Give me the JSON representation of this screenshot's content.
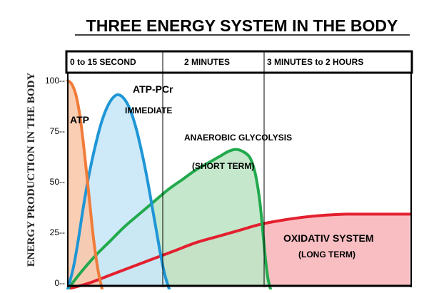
{
  "chart_data": {
    "type": "area",
    "title": "THREE ENERGY SYSTEM IN THE BODY",
    "ylabel": "ENERGY PRODUCTION IN THE BODY",
    "ylim": [
      0,
      105
    ],
    "yticks": [
      {
        "value": 0,
        "label": "0--"
      },
      {
        "value": 25,
        "label": "25--"
      },
      {
        "value": 50,
        "label": "50--"
      },
      {
        "value": 75,
        "label": "75--"
      },
      {
        "value": 100,
        "label": "100--"
      }
    ],
    "time_headers": [
      "0 to 15 SECOND",
      "2 MINUTES",
      "3 MINUTES to 2 HOURS"
    ],
    "series": [
      {
        "name": "ATP",
        "color": "#f07c3a",
        "fill": "#f9c9ab",
        "x": [
          0,
          6,
          12,
          18,
          24,
          30,
          36,
          42,
          48
        ],
        "values": [
          100,
          98,
          92,
          80,
          62,
          42,
          22,
          7,
          -3
        ]
      },
      {
        "name": "ATP-PCr",
        "color": "#1f96d6",
        "fill": "#c9e8f7",
        "x": [
          0,
          8,
          15,
          22,
          30,
          38,
          46,
          54,
          62,
          70,
          79,
          88,
          96,
          104,
          112,
          118,
          124,
          130,
          136,
          142
        ],
        "values": [
          -3,
          8,
          22,
          38,
          54,
          67,
          78,
          86,
          91,
          93,
          91,
          85,
          76,
          64,
          50,
          38,
          26,
          14,
          4,
          -3
        ]
      },
      {
        "name": "ANAEROBIC GLYCOLYSIS",
        "color": "#22a94d",
        "fill": "#bfe6c6",
        "x": [
          0,
          20,
          40,
          60,
          80,
          100,
          120,
          140,
          160,
          180,
          200,
          215,
          225,
          235,
          245,
          255,
          262,
          268,
          272,
          276,
          280,
          284
        ],
        "values": [
          -3,
          6,
          14,
          21,
          28,
          34,
          40,
          46,
          51,
          56,
          60,
          63,
          65,
          66,
          65,
          62,
          55,
          43,
          30,
          15,
          3,
          -3
        ]
      },
      {
        "name": "OXIDATIV SYSTEM",
        "color": "#e3202f",
        "fill": "#f8b7bb",
        "x": [
          0,
          30,
          60,
          90,
          120,
          150,
          180,
          210,
          240,
          270,
          300,
          330,
          360,
          390,
          420,
          450,
          479
        ],
        "values": [
          -3,
          0,
          4,
          8,
          12,
          16,
          20,
          23,
          26,
          29,
          31,
          32.5,
          33.5,
          34,
          34,
          34,
          34
        ]
      }
    ],
    "annotations": [
      {
        "text": "ATP",
        "series": "ATP"
      },
      {
        "text": "ATP-PCr",
        "series": "ATP-PCr"
      },
      {
        "text": "IMMEDIATE",
        "series": "ATP-PCr"
      },
      {
        "text": "ANAEROBIC GLYCOLYSIS",
        "series": "ANAEROBIC GLYCOLYSIS"
      },
      {
        "text": "(SHORT TERM)",
        "series": "ANAEROBIC GLYCOLYSIS"
      },
      {
        "text": "OXIDATIV SYSTEM",
        "series": "OXIDATIV SYSTEM"
      },
      {
        "text": "(LONG TERM)",
        "series": "OXIDATIV SYSTEM"
      }
    ]
  }
}
